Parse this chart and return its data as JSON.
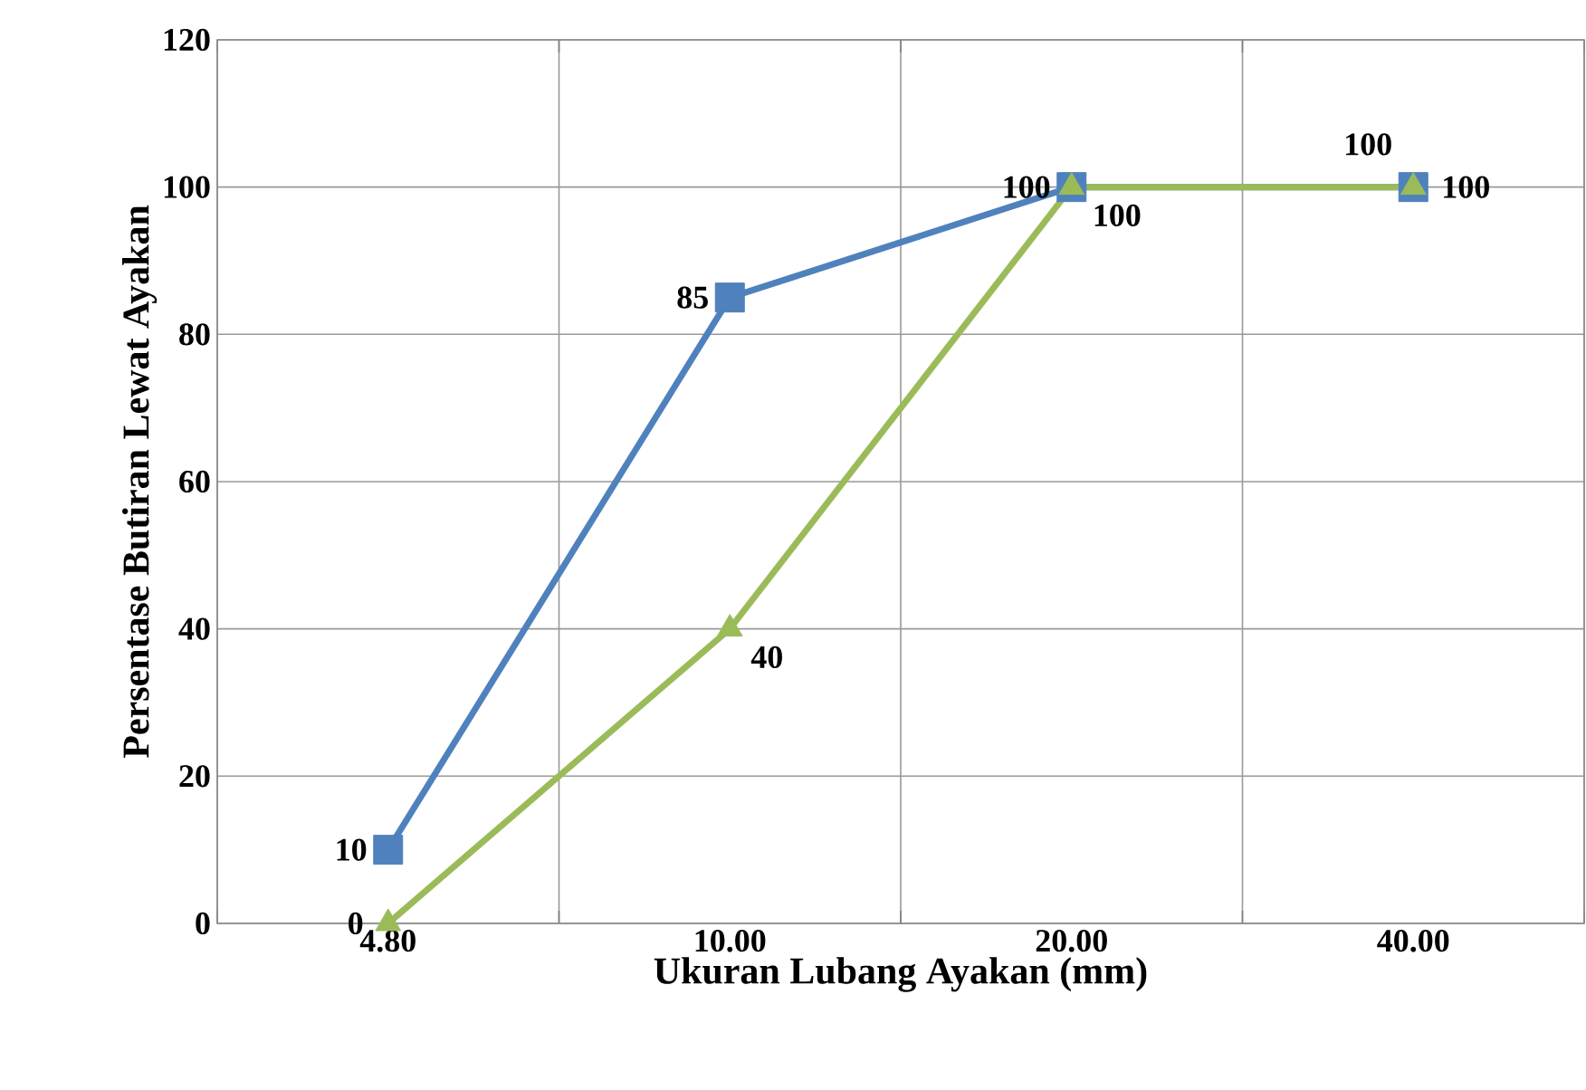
{
  "chart_data": {
    "type": "line",
    "xlabel": "Ukuran Lubang Ayakan (mm)",
    "ylabel": "Persentase Butiran Lewat Ayakan",
    "categories": [
      "4.80",
      "10.00",
      "20.00",
      "40.00"
    ],
    "series": [
      {
        "color": "#4f81bd",
        "marker": "square",
        "values": [
          10,
          85,
          100,
          100
        ]
      },
      {
        "color": "#9bbb59",
        "marker": "triangle",
        "values": [
          0,
          40,
          100,
          100
        ]
      }
    ],
    "ylim": [
      0,
      120
    ],
    "yticks": [
      0,
      20,
      40,
      60,
      80,
      100,
      120
    ],
    "grid": true,
    "data_labels": true,
    "line_style": "solid"
  }
}
